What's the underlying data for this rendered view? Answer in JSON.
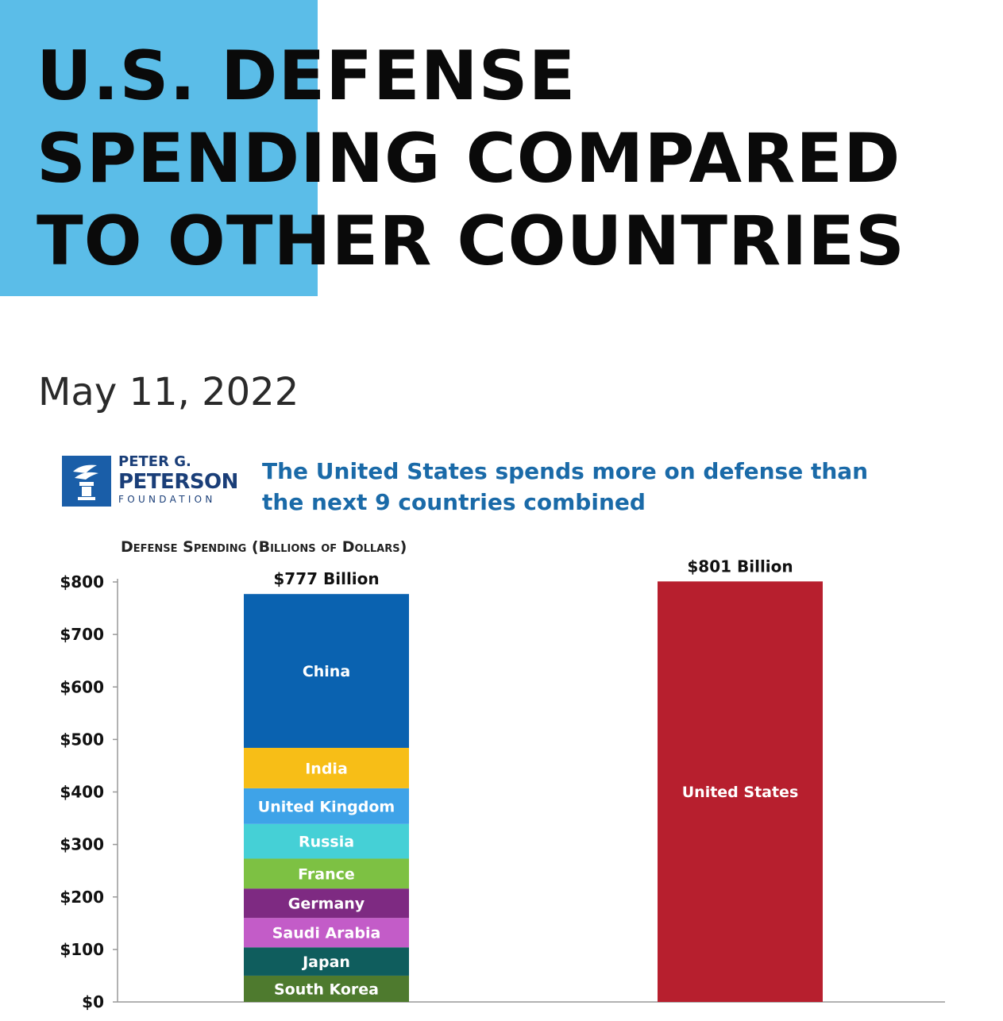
{
  "header": {
    "title_lines": [
      "U.S. DEFENSE",
      "SPENDING COMPARED",
      "TO OTHER COUNTRIES"
    ],
    "date": "May 11, 2022"
  },
  "logo": {
    "line1": "PETER G.",
    "line2": "PETERSON",
    "line3": "FOUNDATION",
    "icon": "torch-icon"
  },
  "colors": {
    "accent_block": "#5bbde8",
    "subtitle": "#1a6aa8"
  },
  "chart_data": {
    "type": "bar",
    "title": "The United States spends more on defense than the next 9 countries combined",
    "ylabel": "Defense Spending (Billions of Dollars)",
    "ylim": [
      0,
      800
    ],
    "yticks": [
      {
        "value": 0,
        "label": "$0"
      },
      {
        "value": 100,
        "label": "$100"
      },
      {
        "value": 200,
        "label": "$200"
      },
      {
        "value": 300,
        "label": "$300"
      },
      {
        "value": 400,
        "label": "$400"
      },
      {
        "value": 500,
        "label": "$500"
      },
      {
        "value": 600,
        "label": "$600"
      },
      {
        "value": 700,
        "label": "$700"
      },
      {
        "value": 800,
        "label": "$800"
      }
    ],
    "stacks": [
      {
        "total_label": "$777 Billion",
        "segments": [
          {
            "name": "South Korea",
            "value": 50,
            "color": "#4e7a2e"
          },
          {
            "name": "Japan",
            "value": 54,
            "color": "#0f5d5d"
          },
          {
            "name": "Saudi Arabia",
            "value": 56,
            "color": "#c35cc8"
          },
          {
            "name": "Germany",
            "value": 56,
            "color": "#7e2a82"
          },
          {
            "name": "France",
            "value": 57,
            "color": "#7dc143"
          },
          {
            "name": "Russia",
            "value": 66,
            "color": "#45d0d6"
          },
          {
            "name": "United Kingdom",
            "value": 68,
            "color": "#3ea3e8"
          },
          {
            "name": "India",
            "value": 77,
            "color": "#f7be17"
          },
          {
            "name": "China",
            "value": 293,
            "color": "#0a62b0"
          }
        ]
      },
      {
        "total_label": "$801 Billion",
        "segments": [
          {
            "name": "United States",
            "value": 801,
            "color": "#b71f2e"
          }
        ]
      }
    ]
  }
}
